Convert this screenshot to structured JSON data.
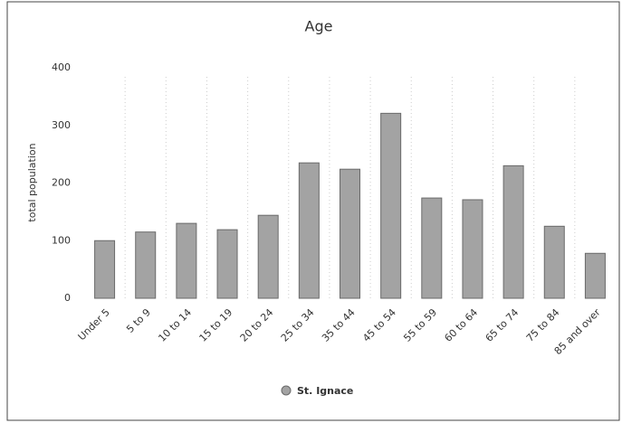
{
  "chart_data": {
    "type": "bar",
    "title": "Age",
    "y_label": "total population",
    "categories": [
      "Under 5",
      "5 to 9",
      "10 to 14",
      "15 to 19",
      "20 to 24",
      "25 to 34",
      "35 to 44",
      "45 to 54",
      "55 to 59",
      "60 to 64",
      "65 to 74",
      "75 to 84",
      "85 and over"
    ],
    "series": [
      {
        "name": "St. Ignace",
        "color": "#a3a3a3",
        "values": [
          100,
          115,
          130,
          119,
          144,
          235,
          224,
          321,
          174,
          171,
          230,
          125,
          78
        ]
      }
    ],
    "ylim": [
      0,
      400
    ],
    "yticks": [
      0,
      100,
      200,
      300,
      400
    ],
    "legend": "bottom"
  }
}
